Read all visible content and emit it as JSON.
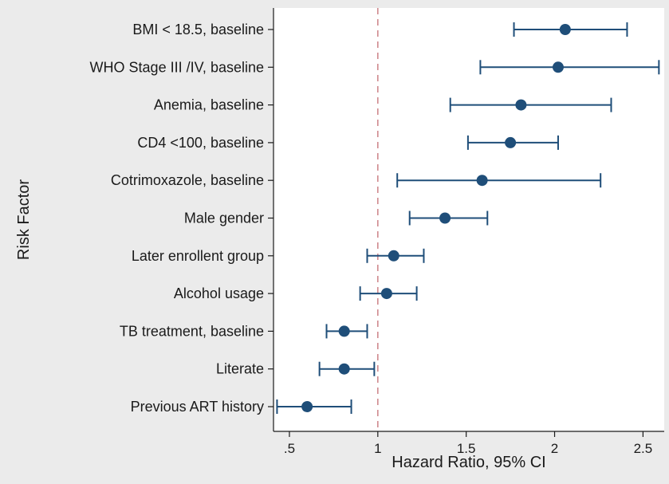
{
  "chart_data": {
    "type": "forest",
    "xlabel": "Hazard Ratio, 95% CI",
    "ylabel": "Risk Factor",
    "xlim": [
      0.41,
      2.62
    ],
    "xticks": [
      {
        "value": 0.5,
        "label": ".5"
      },
      {
        "value": 1.0,
        "label": "1"
      },
      {
        "value": 1.5,
        "label": "1.5"
      },
      {
        "value": 2.0,
        "label": "2"
      },
      {
        "value": 2.5,
        "label": "2.5"
      }
    ],
    "reference_line": 1.0,
    "grid": false,
    "colors": {
      "marker": "#1f4e79",
      "reference_line": "#d08a8f",
      "background": "#ebebeb",
      "plot_bg": "#ffffff",
      "axis": "#1a1a1a"
    },
    "rows": [
      {
        "label": "BMI < 18.5, baseline",
        "hr": 2.06,
        "lower": 1.77,
        "upper": 2.41
      },
      {
        "label": "WHO Stage III /IV, baseline",
        "hr": 2.02,
        "lower": 1.58,
        "upper": 2.59
      },
      {
        "label": "Anemia, baseline",
        "hr": 1.81,
        "lower": 1.41,
        "upper": 2.32
      },
      {
        "label": "CD4 <100, baseline",
        "hr": 1.75,
        "lower": 1.51,
        "upper": 2.02
      },
      {
        "label": "Cotrimoxazole, baseline",
        "hr": 1.59,
        "lower": 1.11,
        "upper": 2.26
      },
      {
        "label": "Male gender",
        "hr": 1.38,
        "lower": 1.18,
        "upper": 1.62
      },
      {
        "label": "Later enrollent group",
        "hr": 1.09,
        "lower": 0.94,
        "upper": 1.26
      },
      {
        "label": "Alcohol usage",
        "hr": 1.05,
        "lower": 0.9,
        "upper": 1.22
      },
      {
        "label": "TB treatment, baseline",
        "hr": 0.81,
        "lower": 0.71,
        "upper": 0.94
      },
      {
        "label": "Literate",
        "hr": 0.81,
        "lower": 0.67,
        "upper": 0.98
      },
      {
        "label": "Previous ART history",
        "hr": 0.6,
        "lower": 0.43,
        "upper": 0.85
      }
    ]
  }
}
